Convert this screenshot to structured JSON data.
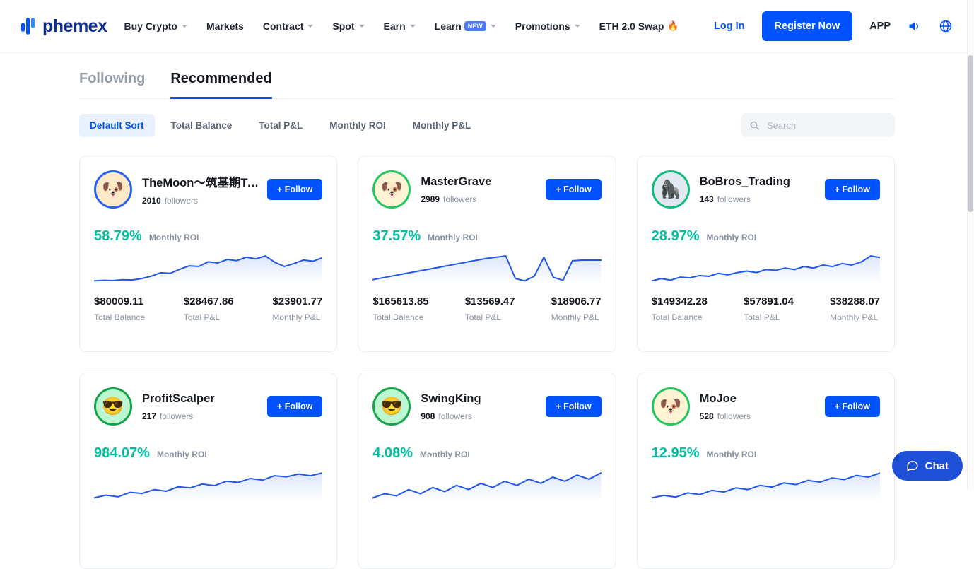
{
  "navbar": {
    "logo_text": "phemex",
    "items": [
      {
        "label": "Buy Crypto"
      },
      {
        "label": "Markets"
      },
      {
        "label": "Contract"
      },
      {
        "label": "Spot"
      },
      {
        "label": "Earn"
      },
      {
        "label": "Learn",
        "badge": "NEW"
      },
      {
        "label": "Promotions"
      },
      {
        "label": "ETH 2.0 Swap",
        "icon": "🔥"
      }
    ],
    "login_label": "Log In",
    "register_label": "Register Now",
    "app_label": "APP"
  },
  "tabs": [
    {
      "label": "Following",
      "active": false
    },
    {
      "label": "Recommended",
      "active": true
    }
  ],
  "sort_bar": {
    "options": [
      "Default Sort",
      "Total Balance",
      "Total P&L",
      "Monthly ROI",
      "Monthly P&L"
    ],
    "active": "Default Sort",
    "search_placeholder": "Search"
  },
  "labels": {
    "followers": "followers",
    "monthly_roi": "Monthly ROI",
    "follow_button": "+ Follow",
    "chat": "Chat"
  },
  "cards": [
    {
      "name": "TheMoon～筑基期Tra...",
      "followers": "2010",
      "roi": "58.79%",
      "avatar": {
        "emoji": "🐶",
        "bg": "#ffe9c7",
        "ring": "#2563eb"
      },
      "chart": [
        3.0,
        3.1,
        3.05,
        3.2,
        3.15,
        3.4,
        3.8,
        4.4,
        4.3,
        5.0,
        5.6,
        5.5,
        6.3,
        6.1,
        6.7,
        6.5,
        7.1,
        6.8,
        7.3,
        6.2,
        5.5,
        6.0,
        6.6,
        6.4,
        7.0
      ],
      "stats": [
        {
          "value": "$80009.11",
          "label": "Total Balance"
        },
        {
          "value": "$28467.86",
          "label": "Total P&L"
        },
        {
          "value": "$23901.77",
          "label": "Monthly P&L"
        }
      ]
    },
    {
      "name": "MasterGrave",
      "followers": "2989",
      "roi": "37.57%",
      "avatar": {
        "emoji": "🐶",
        "bg": "#fff3d6",
        "ring": "#22c55e"
      },
      "chart": [
        4.0,
        4.15,
        4.3,
        4.45,
        4.6,
        4.75,
        4.9,
        5.05,
        5.2,
        5.35,
        5.5,
        5.65,
        5.8,
        5.9,
        6.0,
        4.1,
        3.9,
        4.3,
        5.9,
        4.2,
        3.95,
        5.6,
        5.65,
        5.65,
        5.65
      ],
      "stats": [
        {
          "value": "$165613.85",
          "label": "Total Balance"
        },
        {
          "value": "$13569.47",
          "label": "Total P&L"
        },
        {
          "value": "$18906.77",
          "label": "Monthly P&L"
        }
      ]
    },
    {
      "name": "BoBros_Trading",
      "followers": "143",
      "roi": "28.97%",
      "avatar": {
        "emoji": "🦍",
        "bg": "#e2e8f0",
        "ring": "#10b981"
      },
      "chart": [
        3.5,
        3.8,
        3.6,
        4.0,
        3.9,
        4.2,
        4.1,
        4.5,
        4.3,
        4.6,
        4.8,
        4.6,
        5.0,
        4.9,
        5.2,
        5.0,
        5.4,
        5.2,
        5.6,
        5.4,
        5.8,
        5.6,
        6.0,
        6.8,
        6.6
      ],
      "stats": [
        {
          "value": "$149342.28",
          "label": "Total Balance"
        },
        {
          "value": "$57891.04",
          "label": "Total P&L"
        },
        {
          "value": "$38288.07",
          "label": "Monthly P&L"
        }
      ]
    },
    {
      "name": "ProfitScalper",
      "followers": "217",
      "roi": "984.07%",
      "avatar": {
        "emoji": "😎",
        "bg": "#bbf7d0",
        "ring": "#16a34a"
      },
      "chart": [
        2,
        2.5,
        2.2,
        3,
        2.8,
        3.5,
        3.2,
        4,
        3.8,
        4.5,
        4.2,
        5,
        4.8,
        5.5,
        5.2,
        6,
        5.8,
        6.3,
        6,
        6.5
      ],
      "stats": []
    },
    {
      "name": "SwingKing",
      "followers": "908",
      "roi": "4.08%",
      "avatar": {
        "emoji": "😎",
        "bg": "#bbf7d0",
        "ring": "#16a34a"
      },
      "chart": [
        3,
        3.2,
        3.1,
        3.4,
        3.2,
        3.5,
        3.3,
        3.6,
        3.4,
        3.7,
        3.5,
        3.8,
        3.6,
        3.9,
        3.7,
        4,
        3.8,
        4.1,
        3.9,
        4.2
      ],
      "stats": []
    },
    {
      "name": "MoJoe",
      "followers": "528",
      "roi": "12.95%",
      "avatar": {
        "emoji": "🐶",
        "bg": "#fff3d6",
        "ring": "#22c55e"
      },
      "chart": [
        3,
        3.3,
        3.1,
        3.6,
        3.4,
        3.9,
        3.7,
        4.2,
        4,
        4.5,
        4.3,
        4.8,
        4.6,
        5.1,
        4.9,
        5.4,
        5.2,
        5.7,
        5.5,
        6
      ],
      "stats": []
    }
  ],
  "colors": {
    "brand_blue": "#0052fe",
    "roi_teal": "#00bfa0",
    "chart_blue": "#2156e8",
    "chat_blue": "#1d4fd7"
  }
}
